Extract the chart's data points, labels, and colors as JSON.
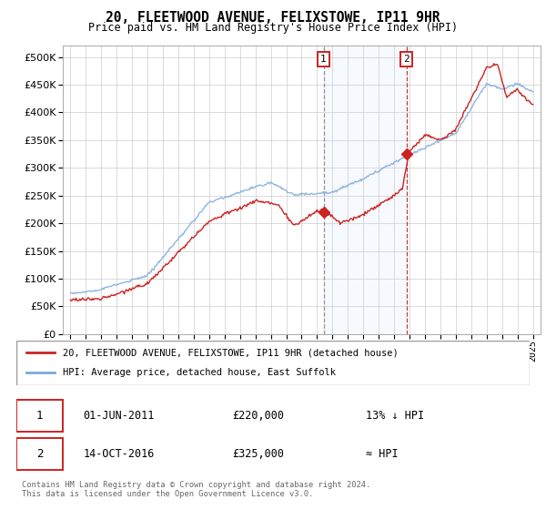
{
  "title": "20, FLEETWOOD AVENUE, FELIXSTOWE, IP11 9HR",
  "subtitle": "Price paid vs. HM Land Registry's House Price Index (HPI)",
  "legend_line1": "20, FLEETWOOD AVENUE, FELIXSTOWE, IP11 9HR (detached house)",
  "legend_line2": "HPI: Average price, detached house, East Suffolk",
  "annotation1": {
    "label": "1",
    "date": "01-JUN-2011",
    "price": "£220,000",
    "note": "13% ↓ HPI"
  },
  "annotation2": {
    "label": "2",
    "date": "14-OCT-2016",
    "price": "£325,000",
    "note": "≈ HPI"
  },
  "footer": "Contains HM Land Registry data © Crown copyright and database right 2024.\nThis data is licensed under the Open Government Licence v3.0.",
  "hpi_color": "#7aaadd",
  "price_color": "#cc2222",
  "marker1_x": 2011.42,
  "marker2_x": 2016.8,
  "marker1_y": 220000,
  "marker2_y": 325000,
  "ylim": [
    0,
    520000
  ],
  "xlim_start": 1994.5,
  "xlim_end": 2025.5,
  "yticks": [
    0,
    50000,
    100000,
    150000,
    200000,
    250000,
    300000,
    350000,
    400000,
    450000,
    500000
  ],
  "xticks": [
    1995,
    1996,
    1997,
    1998,
    1999,
    2000,
    2001,
    2002,
    2003,
    2004,
    2005,
    2006,
    2007,
    2008,
    2009,
    2010,
    2011,
    2012,
    2013,
    2014,
    2015,
    2016,
    2017,
    2018,
    2019,
    2020,
    2021,
    2022,
    2023,
    2024,
    2025
  ]
}
